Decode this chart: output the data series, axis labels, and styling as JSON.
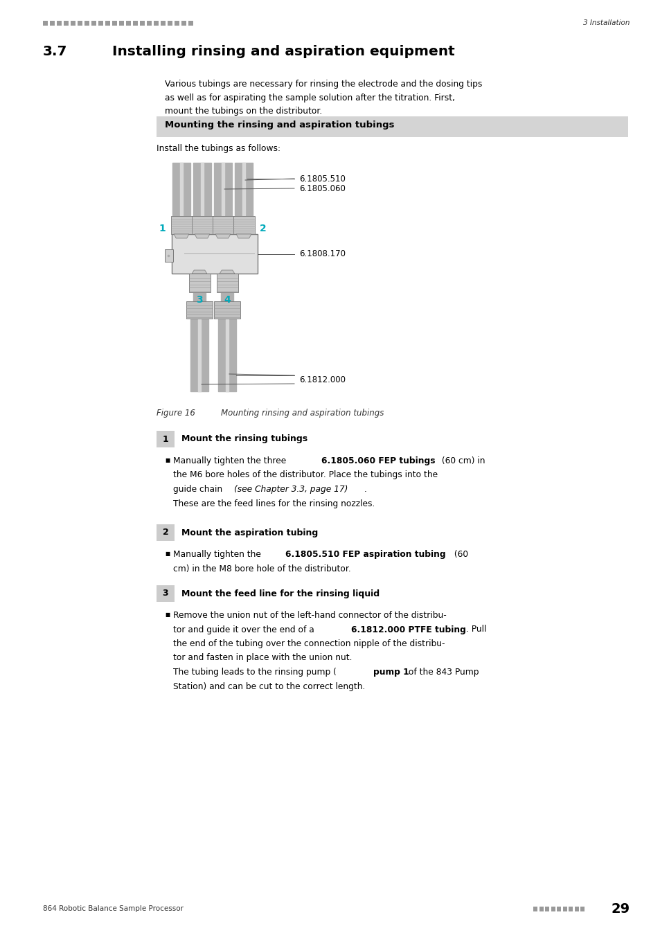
{
  "page_width": 9.54,
  "page_height": 13.5,
  "dpi": 100,
  "bg_color": "#ffffff",
  "header_dots_color": "#999999",
  "header_right_text": "3 Installation",
  "footer_left_text": "864 Robotic Balance Sample Processor",
  "footer_dots_color": "#999999",
  "footer_page_num": "29",
  "section_num": "3.7",
  "section_title": "Installing rinsing and aspiration equipment",
  "intro_line1": "Various tubings are necessary for rinsing the electrode and the dosing tips",
  "intro_line2": "as well as for aspirating the sample solution after the titration. First,",
  "intro_line3": "mount the tubings on the distributor.",
  "box_title": "Mounting the rinsing and aspiration tubings",
  "box_bg": "#d4d4d4",
  "install_text": "Install the tubings as follows:",
  "fig_caption_num": "Figure 16",
  "fig_caption_text": "    Mounting rinsing and aspiration tubings",
  "teal_color": "#00aabb",
  "ref1": "6.1805.510",
  "ref2": "6.1805.060",
  "ref3": "6.1808.170",
  "ref4": "6.1812.000",
  "step1_num": "1",
  "step1_title": "Mount the rinsing tubings",
  "step2_num": "2",
  "step2_title": "Mount the aspiration tubing",
  "step3_num": "3",
  "step3_title": "Mount the feed line for the rinsing liquid",
  "step_badge_bg": "#cccccc",
  "gray_line": "#cccccc",
  "distributor_fill": "#e0e0e0",
  "connector_fill": "#c8c8c8",
  "tube_color": "#b0b0b0",
  "tube_light": "#d8d8d8"
}
